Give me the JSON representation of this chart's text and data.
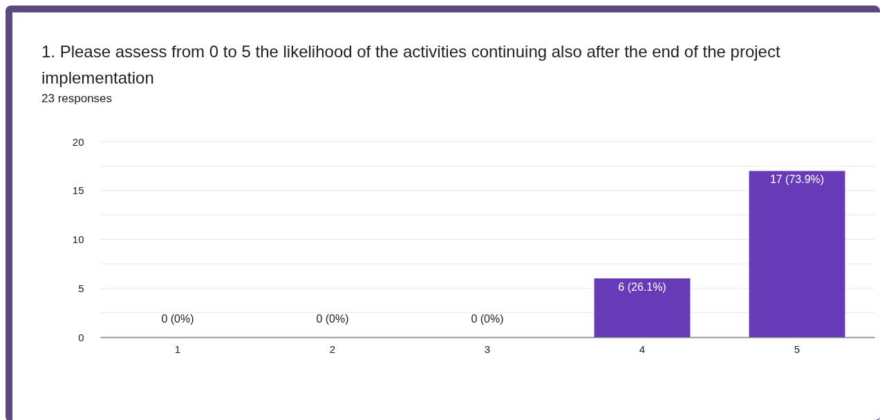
{
  "chart_data": {
    "type": "bar",
    "title": "1. Please assess from 0 to 5 the likelihood of the activities continuing also after the end of the project implementation",
    "subtitle": "23 responses",
    "categories": [
      "1",
      "2",
      "3",
      "4",
      "5"
    ],
    "values": [
      0,
      0,
      0,
      6,
      17
    ],
    "value_labels": [
      "0 (0%)",
      "0 (0%)",
      "0 (0%)",
      "6 (26.1%)",
      "17 (73.9%)"
    ],
    "color": "#673ab7",
    "ylim": [
      0,
      20
    ],
    "yticks": [
      0,
      {
        "value": 2.5,
        "label": null
      },
      5,
      {
        "value": 7.5,
        "label": null
      },
      10,
      {
        "value": 12.5,
        "label": null
      },
      15,
      {
        "value": 17.5,
        "label": null
      },
      20
    ],
    "grid": true
  }
}
